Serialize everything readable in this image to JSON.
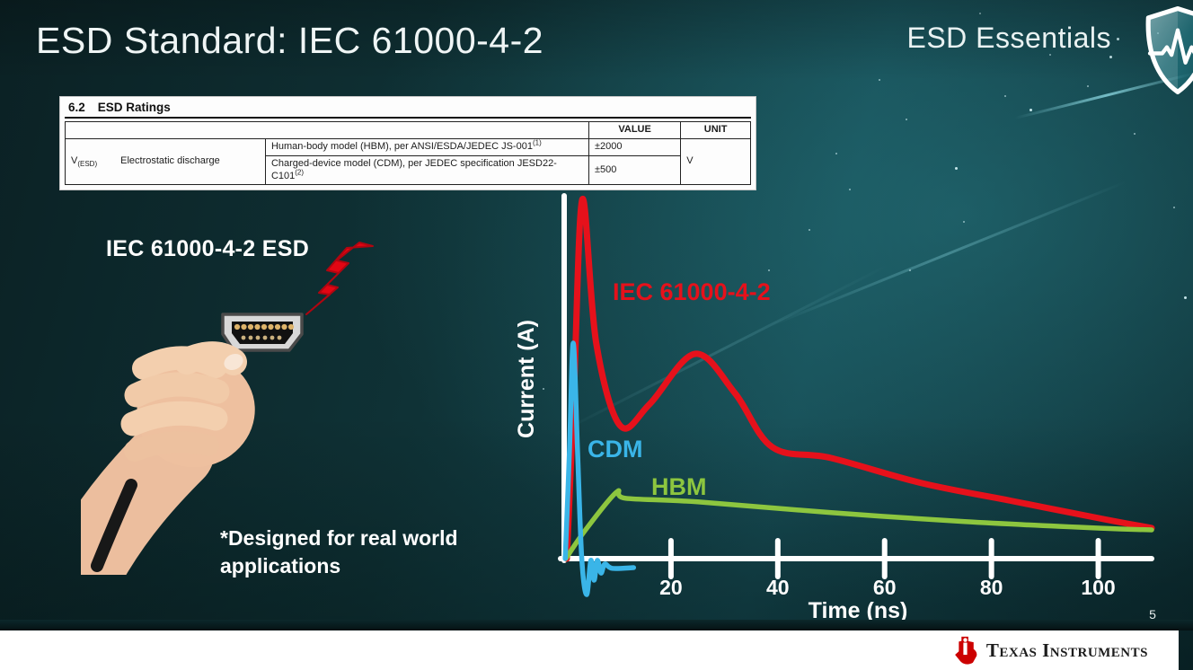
{
  "slide": {
    "title": "ESD Standard: IEC 61000-4-2",
    "program_badge": "ESD Essentials",
    "page_number": "5",
    "illustration_label": "IEC 61000-4-2 ESD",
    "footnote_lines": [
      "*Designed for real world",
      "applications"
    ]
  },
  "ratings_table": {
    "section_number": "6.2",
    "section_title": "ESD Ratings",
    "headers": {
      "value": "VALUE",
      "unit": "UNIT"
    },
    "symbol": {
      "base": "V",
      "subscript": "(ESD)"
    },
    "parameter": "Electrostatic discharge",
    "rows": [
      {
        "model": "Human-body model (HBM), per ANSI/ESDA/JEDEC JS-001",
        "superscript": "(1)",
        "value": "±2000"
      },
      {
        "model": "Charged-device model (CDM), per JEDEC specification JESD22-C101",
        "superscript": "(2)",
        "value": "±500"
      }
    ],
    "unit": "V"
  },
  "chart_data": {
    "type": "line",
    "title": "",
    "xlabel": "Time (ns)",
    "ylabel": "Current (A)",
    "x_ticks": [
      20,
      40,
      60,
      80,
      100
    ],
    "xlim": [
      0,
      112
    ],
    "ylim_relative": [
      -0.12,
      1.05
    ],
    "grid": false,
    "note": "y-axis has no numeric scale; y values are relative amplitude",
    "series": [
      {
        "name": "IEC 61000-4-2",
        "color": "#e6111b",
        "x": [
          0.5,
          1.8,
          3.4,
          6,
          10.5,
          16,
          24.5,
          32,
          39,
          50,
          67,
          84,
          101,
          110
        ],
        "y": [
          0,
          0.45,
          1.0,
          0.6,
          0.37,
          0.43,
          0.57,
          0.46,
          0.31,
          0.28,
          0.21,
          0.16,
          0.11,
          0.085
        ]
      },
      {
        "name": "CDM",
        "color": "#3ab5e8",
        "x": [
          0.2,
          1.0,
          1.7,
          2.5,
          3.3,
          4.2,
          5.0,
          5.6,
          6.2,
          6.9,
          7.6,
          9,
          13
        ],
        "y": [
          0,
          0.3,
          0.6,
          0.3,
          0,
          -0.1,
          -0.005,
          -0.06,
          -0.005,
          -0.04,
          -0.015,
          -0.027,
          -0.025
        ]
      },
      {
        "name": "HBM",
        "color": "#8dc63f",
        "x": [
          0.3,
          4,
          9.8,
          11.5,
          25,
          50,
          75,
          100,
          110
        ],
        "y": [
          0,
          0.08,
          0.185,
          0.168,
          0.158,
          0.128,
          0.103,
          0.085,
          0.08
        ]
      }
    ]
  },
  "footer": {
    "brand": "Texas Instruments"
  }
}
